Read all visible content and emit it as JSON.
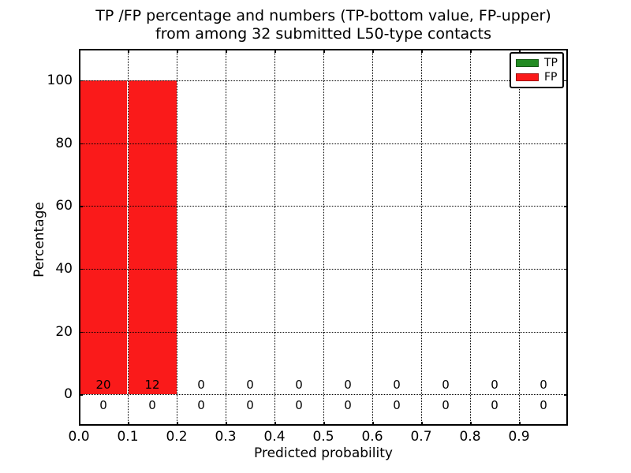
{
  "chart_data": {
    "type": "bar",
    "stacked": true,
    "title_lines": [
      "TP /FP percentage and numbers (TP-bottom value, FP-upper)",
      "from among 32 submitted L50-type contacts"
    ],
    "xlabel": "Predicted probability",
    "ylabel": "Percentage",
    "xlim": [
      0.0,
      1.0
    ],
    "ylim": [
      -10,
      110
    ],
    "grid": "dotted",
    "legend_position": "upper right",
    "bin_edges": [
      0.0,
      0.1,
      0.2,
      0.3,
      0.4,
      0.5,
      0.6,
      0.7,
      0.8,
      0.9,
      1.0
    ],
    "xtick_values": [
      0.0,
      0.1,
      0.2,
      0.3,
      0.4,
      0.5,
      0.6,
      0.7,
      0.8,
      0.9
    ],
    "xtick_labels": [
      "0.0",
      "0.1",
      "0.2",
      "0.3",
      "0.4",
      "0.5",
      "0.6",
      "0.7",
      "0.8",
      "0.9"
    ],
    "ytick_values": [
      0,
      20,
      40,
      60,
      80,
      100
    ],
    "ytick_labels": [
      "0",
      "20",
      "40",
      "60",
      "80",
      "100"
    ],
    "series": [
      {
        "name": "TP",
        "color": "#228b22",
        "count_row": "below",
        "percentages": [
          0,
          0,
          0,
          0,
          0,
          0,
          0,
          0,
          0,
          0
        ],
        "counts": [
          0,
          0,
          0,
          0,
          0,
          0,
          0,
          0,
          0,
          0
        ]
      },
      {
        "name": "FP",
        "color": "#fa1a1a",
        "count_row": "above",
        "percentages": [
          100,
          100,
          0,
          0,
          0,
          0,
          0,
          0,
          0,
          0
        ],
        "counts": [
          20,
          12,
          0,
          0,
          0,
          0,
          0,
          0,
          0,
          0
        ]
      }
    ]
  }
}
